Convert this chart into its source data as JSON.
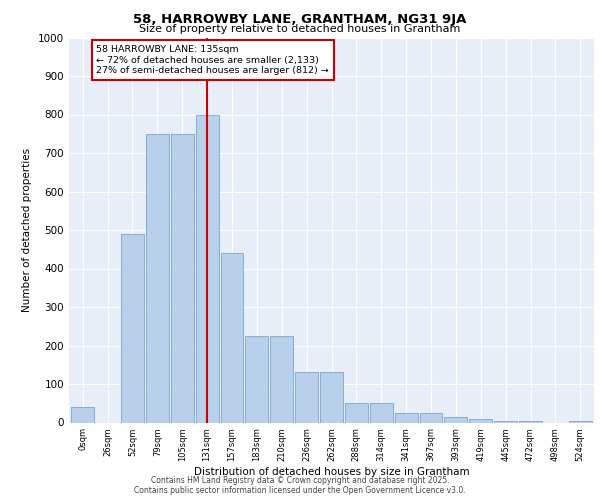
{
  "title": "58, HARROWBY LANE, GRANTHAM, NG31 9JA",
  "subtitle": "Size of property relative to detached houses in Grantham",
  "xlabel": "Distribution of detached houses by size in Grantham",
  "ylabel": "Number of detached properties",
  "bar_labels": [
    "0sqm",
    "26sqm",
    "52sqm",
    "79sqm",
    "105sqm",
    "131sqm",
    "157sqm",
    "183sqm",
    "210sqm",
    "236sqm",
    "262sqm",
    "288sqm",
    "314sqm",
    "341sqm",
    "367sqm",
    "393sqm",
    "419sqm",
    "445sqm",
    "472sqm",
    "498sqm",
    "524sqm"
  ],
  "bar_values": [
    40,
    0,
    490,
    750,
    750,
    800,
    440,
    225,
    225,
    130,
    130,
    50,
    50,
    25,
    25,
    15,
    10,
    5,
    5,
    0,
    5
  ],
  "bar_color": "#b8d0ea",
  "bar_edge_color": "#6699cc",
  "vline_x_index": 5,
  "vline_color": "#cc0000",
  "annotation_text": "58 HARROWBY LANE: 135sqm\n← 72% of detached houses are smaller (2,133)\n27% of semi-detached houses are larger (812) →",
  "annotation_box_color": "#ffffff",
  "annotation_border_color": "#cc0000",
  "ylim": [
    0,
    1000
  ],
  "yticks": [
    0,
    100,
    200,
    300,
    400,
    500,
    600,
    700,
    800,
    900,
    1000
  ],
  "plot_bg_color": "#e8eef8",
  "footer_line1": "Contains HM Land Registry data © Crown copyright and database right 2025.",
  "footer_line2": "Contains public sector information licensed under the Open Government Licence v3.0."
}
